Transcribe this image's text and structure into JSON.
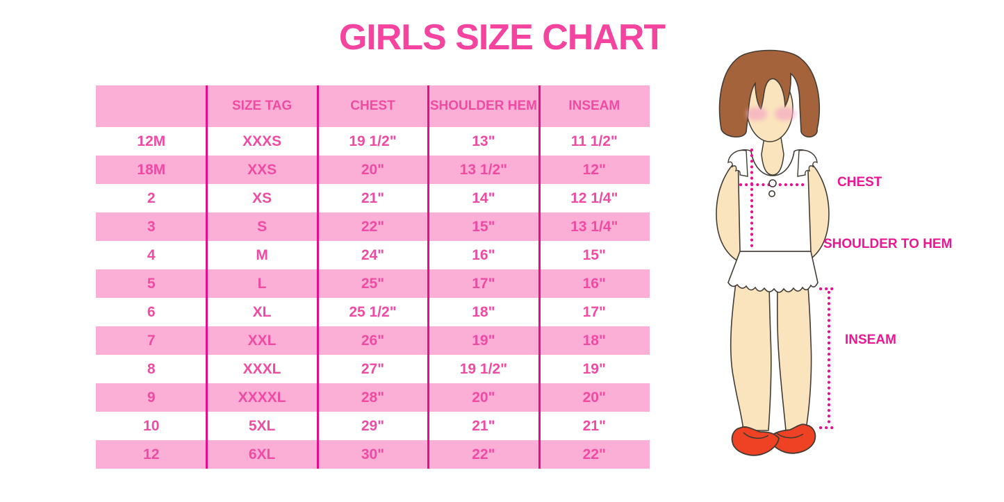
{
  "title": "GIRLS SIZE CHART",
  "chart_data": {
    "type": "table",
    "title": "GIRLS SIZE CHART",
    "columns": [
      "",
      "SIZE TAG",
      "CHEST",
      "SHOULDER HEM",
      "INSEAM"
    ],
    "rows": [
      [
        "12M",
        "XXXS",
        "19 1/2\"",
        "13\"",
        "11 1/2\""
      ],
      [
        "18M",
        "XXS",
        "20\"",
        "13 1/2\"",
        "12\""
      ],
      [
        "2",
        "XS",
        "21\"",
        "14\"",
        "12 1/4\""
      ],
      [
        "3",
        "S",
        "22\"",
        "15\"",
        "13 1/4\""
      ],
      [
        "4",
        "M",
        "24\"",
        "16\"",
        "15\""
      ],
      [
        "5",
        "L",
        "25\"",
        "17\"",
        "16\""
      ],
      [
        "6",
        "XL",
        "25 1/2\"",
        "18\"",
        "17\""
      ],
      [
        "7",
        "XXL",
        "26\"",
        "19\"",
        "18\""
      ],
      [
        "8",
        "XXXL",
        "27\"",
        "19 1/2\"",
        "19\""
      ],
      [
        "9",
        "XXXXL",
        "28\"",
        "20\"",
        "20\""
      ],
      [
        "10",
        "5XL",
        "29\"",
        "21\"",
        "21\""
      ],
      [
        "12",
        "6XL",
        "30\"",
        "22\"",
        "22\""
      ]
    ],
    "layout_hints": {
      "striping": "header and every second data row filled light pink, others white",
      "column_dividers": "magenta vertical rules between all 5 equal columns"
    }
  },
  "diagram": {
    "chest_label": "CHEST",
    "shoulder_to_hem_label": "SHOULDER TO HEM",
    "inseam_label": "INSEAM"
  },
  "colors": {
    "title": "#F4449F",
    "row_pink": "#FBAFD7",
    "cell_text": "#F04BA3",
    "divider": "#E60C8A",
    "label": "#ED1692",
    "dotted_line": "#EC0E8E",
    "hair": "#A5633C",
    "skin": "#FAE4BD",
    "blush": "#F5A8C5",
    "shoes": "#EF4123",
    "outline": "#423B34"
  }
}
